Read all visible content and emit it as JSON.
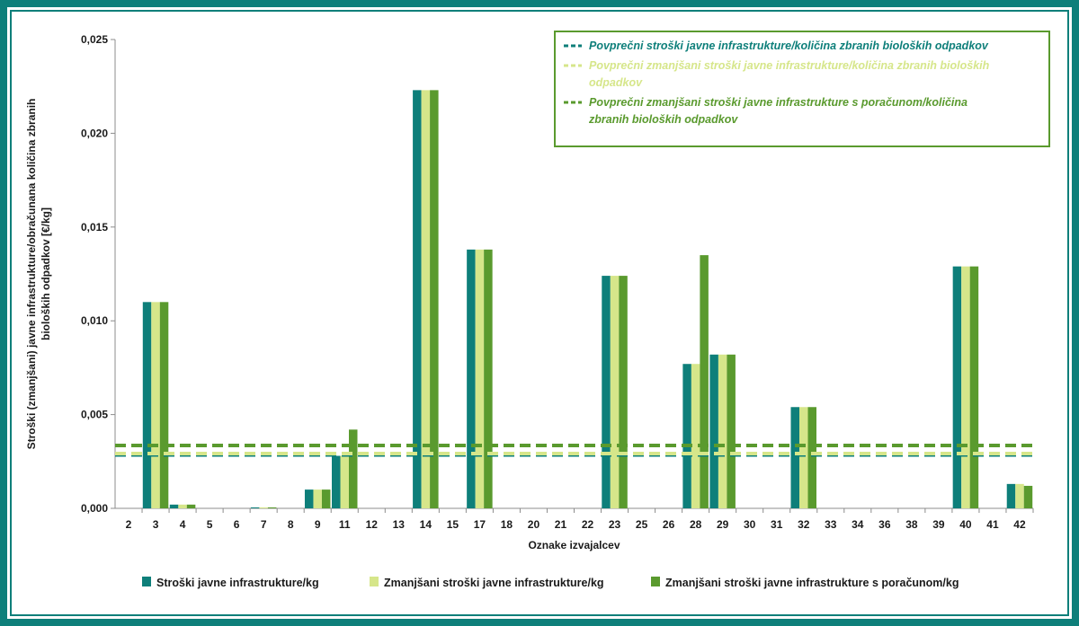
{
  "chart_data": {
    "type": "bar",
    "xlabel": "Oznake izvajalcev",
    "ylabel_lines": [
      "Stroški (zmanjšani) javne infrastrukture/obračunana količina zbranih",
      "bioloških odpadkov [€/kg]"
    ],
    "ylim": [
      0,
      0.025
    ],
    "yticks": [
      "0,000",
      "0,005",
      "0,010",
      "0,015",
      "0,020",
      "0,025"
    ],
    "ytick_values": [
      0,
      0.005,
      0.01,
      0.015,
      0.02,
      0.025
    ],
    "categories": [
      "2",
      "3",
      "4",
      "5",
      "6",
      "7",
      "8",
      "9",
      "11",
      "12",
      "13",
      "14",
      "15",
      "17",
      "18",
      "20",
      "21",
      "22",
      "23",
      "25",
      "26",
      "28",
      "29",
      "30",
      "31",
      "32",
      "33",
      "34",
      "36",
      "38",
      "39",
      "40",
      "41",
      "42"
    ],
    "series": [
      {
        "name": "Stroški javne infrastrukture/kg",
        "color": "#0e7f7a",
        "values": [
          0,
          0.011,
          0.0002,
          0,
          0,
          5e-05,
          0,
          0.001,
          0.0028,
          0,
          0,
          0.0223,
          0,
          0.0138,
          0,
          0,
          0,
          0,
          0.0124,
          0,
          0,
          0.0077,
          0.0082,
          0,
          0,
          0.0054,
          0,
          0,
          0,
          0,
          0,
          0.0129,
          0,
          0.0013
        ]
      },
      {
        "name": "Zmanjšani stroški javne infrastrukture/kg",
        "color": "#d6e68a",
        "values": [
          0,
          0.011,
          0.0002,
          0,
          0,
          5e-05,
          0,
          0.001,
          0.0028,
          0,
          0,
          0.0223,
          0,
          0.0138,
          0,
          0,
          0,
          0,
          0.0124,
          0,
          0,
          0.0077,
          0.0082,
          0,
          0,
          0.0054,
          0,
          0,
          0,
          0,
          0,
          0.0129,
          0,
          0.0013
        ]
      },
      {
        "name": "Zmanjšani stroški javne infrastrukture s poračunom/kg",
        "color": "#5a9a2e",
        "values": [
          0,
          0.011,
          0.0002,
          0,
          0,
          5e-05,
          0,
          0.001,
          0.0042,
          0,
          0,
          0.0223,
          0,
          0.0138,
          0,
          0,
          0,
          0,
          0.0124,
          0,
          0,
          0.0135,
          0.0082,
          0,
          0,
          0.0054,
          0,
          0,
          0,
          0,
          0,
          0.0129,
          0,
          0.0012
        ]
      }
    ],
    "average_lines": [
      {
        "lines": [
          "Povprečni stroški javne infrastrukture/količina zbranih bioloških odpadkov"
        ],
        "value": 0.00285,
        "color": "#0e7f7a"
      },
      {
        "lines": [
          "Povprečni zmanjšani stroški javne infrastrukture/količina zbranih bioloških",
          "odpadkov"
        ],
        "value": 0.00292,
        "color": "#d6e68a"
      },
      {
        "lines": [
          "Povprečni zmanjšani stroški javne infrastrukture s poračunom/količina",
          "zbranih bioloških odpadkov"
        ],
        "value": 0.00335,
        "color": "#5a9a2e"
      }
    ],
    "legend_position": "bottom",
    "avg_legend_position": "top-right",
    "grid": false
  }
}
